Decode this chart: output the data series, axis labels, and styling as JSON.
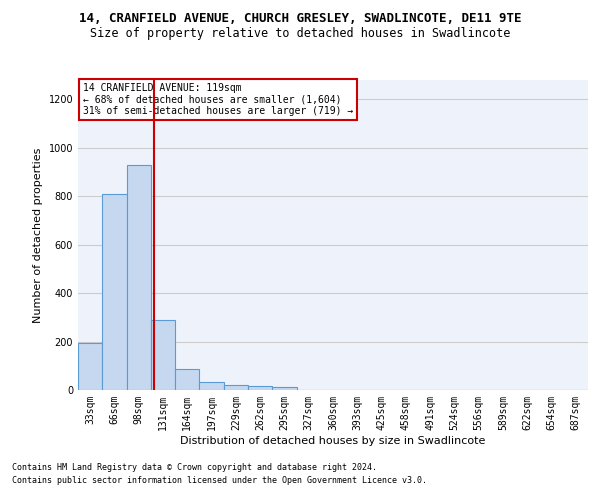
{
  "title_line1": "14, CRANFIELD AVENUE, CHURCH GRESLEY, SWADLINCOTE, DE11 9TE",
  "title_line2": "Size of property relative to detached houses in Swadlincote",
  "xlabel": "Distribution of detached houses by size in Swadlincote",
  "ylabel": "Number of detached properties",
  "footnote1": "Contains HM Land Registry data © Crown copyright and database right 2024.",
  "footnote2": "Contains public sector information licensed under the Open Government Licence v3.0.",
  "annotation_line1": "14 CRANFIELD AVENUE: 119sqm",
  "annotation_line2": "← 68% of detached houses are smaller (1,604)",
  "annotation_line3": "31% of semi-detached houses are larger (719) →",
  "bar_color": "#c5d8f0",
  "bar_edge_color": "#5b9bd5",
  "vline_color": "#cc0000",
  "categories": [
    "33sqm",
    "66sqm",
    "98sqm",
    "131sqm",
    "164sqm",
    "197sqm",
    "229sqm",
    "262sqm",
    "295sqm",
    "327sqm",
    "360sqm",
    "393sqm",
    "425sqm",
    "458sqm",
    "491sqm",
    "524sqm",
    "556sqm",
    "589sqm",
    "622sqm",
    "654sqm",
    "687sqm"
  ],
  "values": [
    195,
    810,
    930,
    290,
    85,
    35,
    20,
    15,
    12,
    0,
    0,
    0,
    0,
    0,
    0,
    0,
    0,
    0,
    0,
    0,
    0
  ],
  "ylim": [
    0,
    1280
  ],
  "yticks": [
    0,
    200,
    400,
    600,
    800,
    1000,
    1200
  ],
  "grid_color": "#cccccc",
  "bg_color": "#eef3fb",
  "annotation_box_color": "#ffffff",
  "annotation_box_edge": "#cc0000",
  "title1_fontsize": 9,
  "title2_fontsize": 8.5,
  "xlabel_fontsize": 8,
  "ylabel_fontsize": 8,
  "tick_fontsize": 7,
  "annot_fontsize": 7,
  "footnote_fontsize": 6
}
